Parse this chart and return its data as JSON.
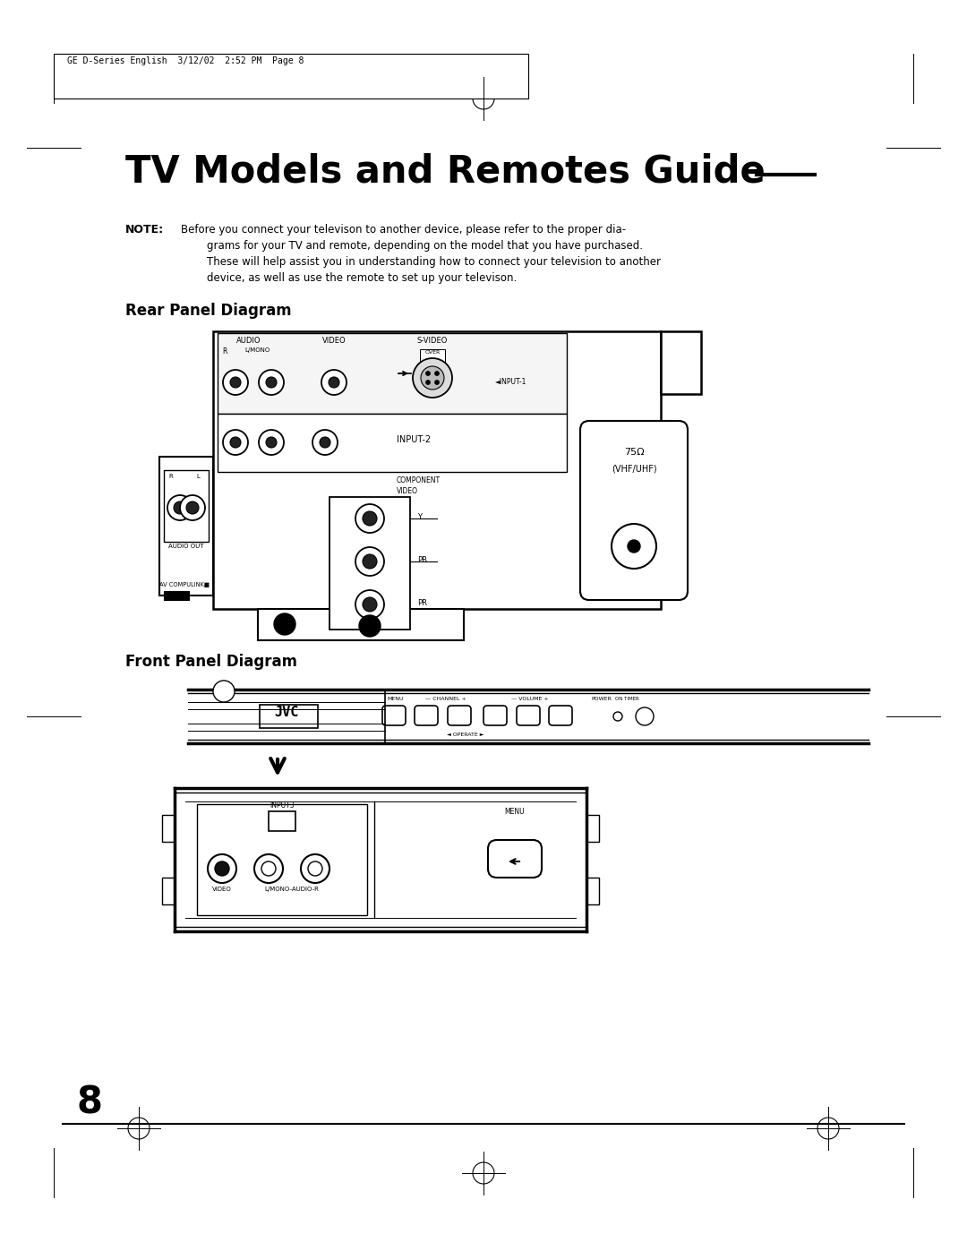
{
  "title": "TV Models and Remotes Guide",
  "header_text": "GE D-Series English  3/12/02  2:52 PM  Page 8",
  "rear_panel_title": "Rear Panel Diagram",
  "front_panel_title": "Front Panel Diagram",
  "page_number": "8",
  "bg_color": "#ffffff",
  "note_line1": "Before you connect your televison to another device, please refer to the proper dia-",
  "note_line2": "grams for your TV and remote, depending on the model that you have purchased.",
  "note_line3": "These will help assist you in understanding how to connect your television to another",
  "note_line4": "device, as well as use the remote to set up your televison."
}
